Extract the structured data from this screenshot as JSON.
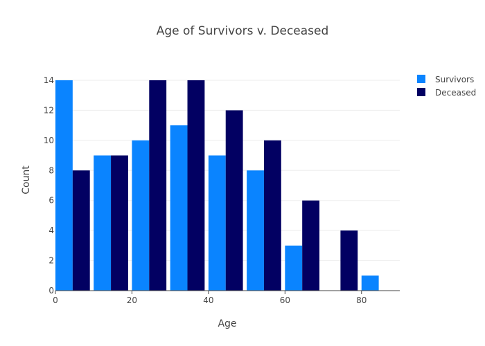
{
  "chart_data": {
    "type": "bar",
    "title": "Age of Survivors v. Deceased",
    "xlabel": "Age",
    "ylabel": "Count",
    "xlim": [
      0,
      90
    ],
    "ylim": [
      0,
      14
    ],
    "x_ticks": [
      0,
      20,
      40,
      60,
      80
    ],
    "y_ticks": [
      0,
      2,
      4,
      6,
      8,
      10,
      12,
      14
    ],
    "bin_width": 10,
    "bins": [
      {
        "start": 0,
        "end": 10
      },
      {
        "start": 10,
        "end": 20
      },
      {
        "start": 20,
        "end": 30
      },
      {
        "start": 30,
        "end": 40
      },
      {
        "start": 40,
        "end": 50
      },
      {
        "start": 50,
        "end": 60
      },
      {
        "start": 60,
        "end": 70
      },
      {
        "start": 70,
        "end": 80
      },
      {
        "start": 80,
        "end": 90
      }
    ],
    "series": [
      {
        "name": "Survivors",
        "color": "#0a84ff",
        "values": [
          14,
          9,
          10,
          11,
          9,
          8,
          3,
          0,
          1
        ]
      },
      {
        "name": "Deceased",
        "color": "#020062",
        "values": [
          8,
          9,
          14,
          14,
          12,
          10,
          6,
          4,
          0
        ]
      }
    ],
    "grid": true,
    "legend_position": "top-right"
  }
}
